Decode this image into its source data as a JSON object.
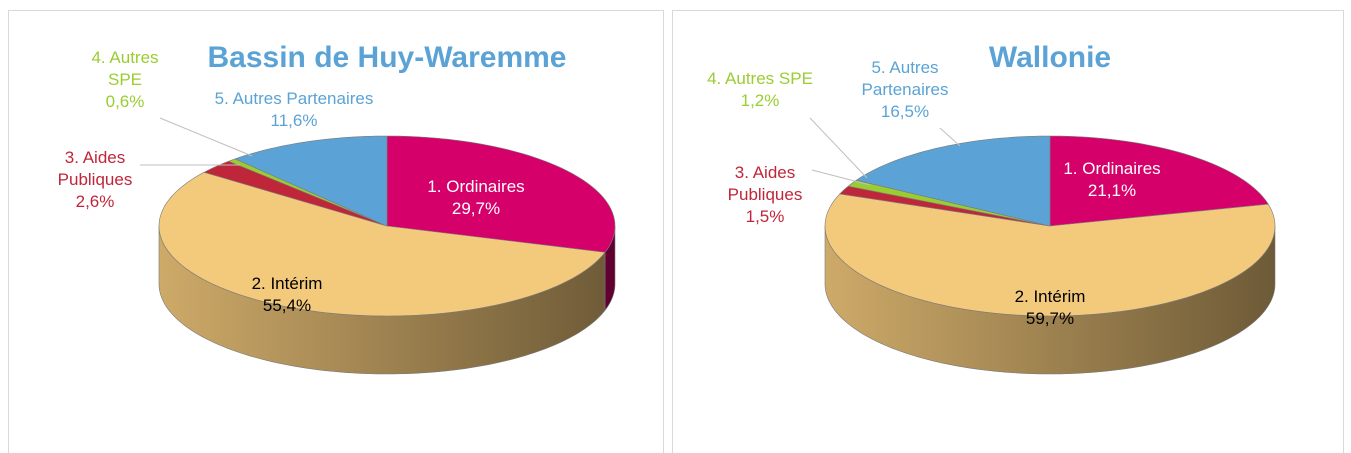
{
  "chart_data": [
    {
      "type": "pie3d",
      "title": "Bassin de Huy-Waremme",
      "categories": [
        "1. Ordinaires",
        "2. Intérim",
        "3. Aides Publiques",
        "4. Autres SPE",
        "5. Autres Partenaires"
      ],
      "values": [
        29.7,
        55.4,
        2.6,
        0.6,
        11.6
      ],
      "value_labels": [
        "29,7%",
        "55,4%",
        "2,6%",
        "0,6%",
        "11,6%"
      ],
      "colors": [
        "#d6006b",
        "#f3c97c",
        "#c0263a",
        "#9acd32",
        "#5ba3d6"
      ]
    },
    {
      "type": "pie3d",
      "title": "Wallonie",
      "categories": [
        "1. Ordinaires",
        "2. Intérim",
        "3. Aides Publiques",
        "4. Autres SPE",
        "5. Autres Partenaires"
      ],
      "values": [
        21.1,
        59.7,
        1.5,
        1.2,
        16.5
      ],
      "value_labels": [
        "21,1%",
        "59,7%",
        "1,5%",
        "1,2%",
        "16,5%"
      ],
      "colors": [
        "#d6006b",
        "#f3c97c",
        "#c0263a",
        "#9acd32",
        "#5ba3d6"
      ]
    }
  ]
}
